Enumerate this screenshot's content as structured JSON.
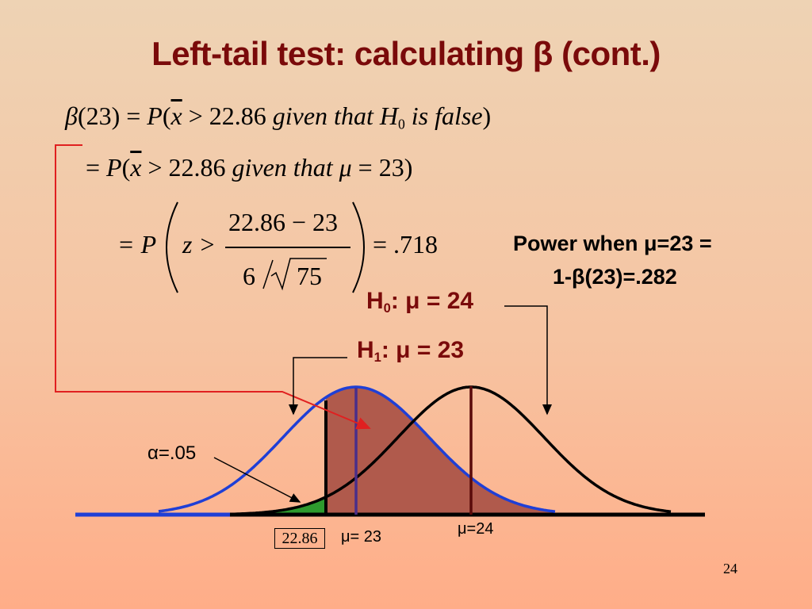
{
  "slide": {
    "title": "Left-tail test: calculating β (cont.)",
    "page_number": "24"
  },
  "equations": {
    "line1": {
      "beta": "β",
      "arg": "(23) = ",
      "P": "P",
      "open": "(",
      "xbar": "x",
      "gt": " > 22.86 ",
      "given": "given  that  H",
      "sub0": "0",
      "rest": "  is  false",
      "close": ")"
    },
    "line2": {
      "eq": "= ",
      "P": "P",
      "open": "(",
      "xbar": "x",
      "gt": " > 22.86 ",
      "given": "given  that  ",
      "mu": "μ",
      "rest": " = 23)"
    },
    "line3": {
      "lead": "= P",
      "z": "z >",
      "numerator": "22.86 − 23",
      "den_left": "6",
      "den_right": "75",
      "result": "= .718"
    }
  },
  "power": {
    "line1": "Power when μ=23 =",
    "line2": "1-β(23)=.282"
  },
  "hypotheses": {
    "h0": {
      "H": "H",
      "sub": "0",
      "text": ": μ = 24"
    },
    "h1": {
      "H": "H",
      "sub": "1",
      "text": ": μ = 23"
    }
  },
  "annotations": {
    "alpha": "α=.05",
    "critical_value": "22.86",
    "mu23": "μ= 23",
    "mu24": "μ=24"
  },
  "colors": {
    "title": "#7a0a0a",
    "h1_curve": "#1f3fd6",
    "h0_curve": "#000000",
    "beta_fill": "#b05a4c",
    "alpha_fill": "#2e9a2e",
    "connector": "#e02020",
    "mu23_line": "#4a2e8a",
    "mu24_line": "#5a0a0a"
  }
}
